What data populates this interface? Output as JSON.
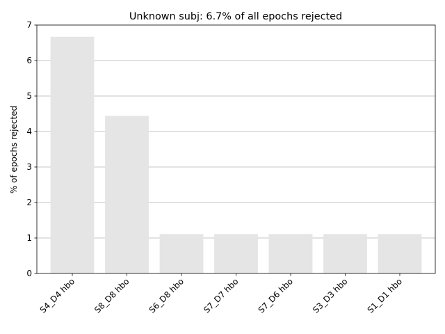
{
  "chart_data": {
    "type": "bar",
    "title": "Unknown subj: 6.7% of all epochs rejected",
    "xlabel": "",
    "ylabel": "% of epochs rejected",
    "categories": [
      "S4_D4 hbo",
      "S8_D8 hbo",
      "S6_D8 hbo",
      "S7_D7 hbo",
      "S7_D6 hbo",
      "S3_D3 hbo",
      "S1_D1 hbo"
    ],
    "values": [
      6.67,
      4.44,
      1.11,
      1.11,
      1.11,
      1.11,
      1.11
    ],
    "ylim": [
      0,
      7
    ],
    "yticks": [
      "0",
      "1",
      "2",
      "3",
      "4",
      "5",
      "6",
      "7"
    ],
    "grid": "horizontal",
    "legend": "none",
    "colors": {
      "bar": "#e5e5e5",
      "grid": "#b0b0b0",
      "axis": "#000000"
    }
  }
}
